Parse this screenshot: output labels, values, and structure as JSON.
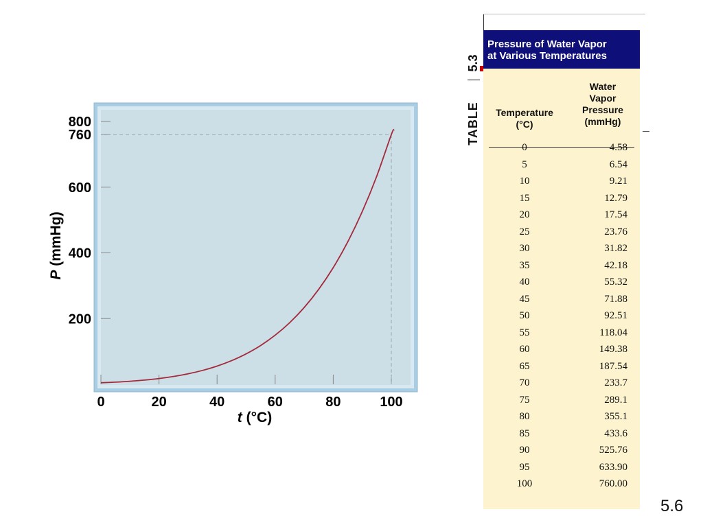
{
  "chart_data": {
    "type": "line",
    "xlabel_italic": "t",
    "xlabel_unit": " (°C)",
    "ylabel_italic": "P",
    "ylabel_unit": " (mmHg)",
    "xlim": [
      0,
      100
    ],
    "ylim": [
      0,
      800
    ],
    "x_ticks": [
      0,
      20,
      40,
      60,
      80,
      100
    ],
    "y_ticks": [
      200,
      400,
      600,
      760,
      800
    ],
    "reference_line": {
      "y": 760,
      "x": 100
    },
    "line_color": "#a32a3c",
    "plot_background": "#ccdee6",
    "frame_color": "#a9cde3",
    "series": [
      {
        "x": [
          0,
          5,
          10,
          15,
          20,
          25,
          30,
          35,
          40,
          45,
          50,
          55,
          60,
          65,
          70,
          75,
          80,
          85,
          90,
          95,
          100,
          101
        ],
        "values": [
          4.58,
          6.54,
          9.21,
          12.79,
          17.54,
          23.76,
          31.82,
          42.18,
          55.32,
          71.88,
          92.51,
          118.04,
          149.38,
          187.54,
          233.7,
          289.1,
          355.1,
          433.6,
          525.76,
          633.9,
          760.0,
          775
        ]
      }
    ]
  },
  "table": {
    "label_word": "TABLE",
    "label_number": "5.3",
    "title_line1": "Pressure of Water Vapor",
    "title_line2": "at Various Temperatures",
    "col_temp_line1": "Temperature",
    "col_temp_line2": "(°C)",
    "col_press_line1": "Water",
    "col_press_line2": "Vapor",
    "col_press_line3": "Pressure",
    "col_press_line4": "(mmHg)",
    "header_bg": "#0f0f7a",
    "body_bg": "#fdf3cf",
    "rows": [
      [
        "0",
        "4.58"
      ],
      [
        "5",
        "6.54"
      ],
      [
        "10",
        "9.21"
      ],
      [
        "15",
        "12.79"
      ],
      [
        "20",
        "17.54"
      ],
      [
        "25",
        "23.76"
      ],
      [
        "30",
        "31.82"
      ],
      [
        "35",
        "42.18"
      ],
      [
        "40",
        "55.32"
      ],
      [
        "45",
        "71.88"
      ],
      [
        "50",
        "92.51"
      ],
      [
        "55",
        "118.04"
      ],
      [
        "60",
        "149.38"
      ],
      [
        "65",
        "187.54"
      ],
      [
        "70",
        "233.7"
      ],
      [
        "75",
        "289.1"
      ],
      [
        "80",
        "355.1"
      ],
      [
        "85",
        "433.6"
      ],
      [
        "90",
        "525.76"
      ],
      [
        "95",
        "633.90"
      ],
      [
        "100",
        "760.00"
      ]
    ]
  },
  "slide_number": "5.6"
}
